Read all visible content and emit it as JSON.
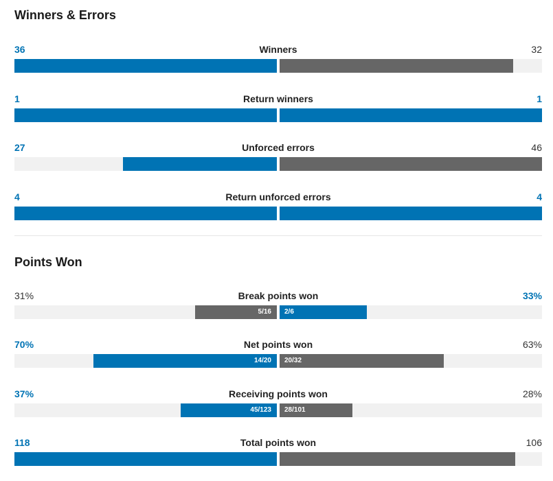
{
  "colors": {
    "blue": "#0073b4",
    "gray": "#666666",
    "track": "#f1f1f1",
    "plain_text": "#333333"
  },
  "winners_errors": {
    "title": "Winners & Errors",
    "stats": [
      {
        "label": "Winners",
        "left": "36",
        "right": "32",
        "left_fill": 1.0,
        "right_fill": 0.889,
        "left_color": "blue",
        "right_color": "gray",
        "left_bold": true,
        "right_bold": false
      },
      {
        "label": "Return winners",
        "left": "1",
        "right": "1",
        "left_fill": 1.0,
        "right_fill": 1.0,
        "left_color": "blue",
        "right_color": "blue",
        "left_bold": true,
        "right_bold": true
      },
      {
        "label": "Unforced errors",
        "left": "27",
        "right": "46",
        "left_fill": 0.587,
        "right_fill": 1.0,
        "left_color": "blue",
        "right_color": "gray",
        "left_bold": true,
        "right_bold": false
      },
      {
        "label": "Return unforced errors",
        "left": "4",
        "right": "4",
        "left_fill": 1.0,
        "right_fill": 1.0,
        "left_color": "blue",
        "right_color": "blue",
        "left_bold": true,
        "right_bold": true
      }
    ]
  },
  "points_won": {
    "title": "Points Won",
    "stats": [
      {
        "label": "Break points won",
        "left": "31%",
        "right": "33%",
        "left_fill": 0.3125,
        "right_fill": 0.333,
        "left_color": "gray",
        "right_color": "blue",
        "left_bold": false,
        "right_bold": true,
        "left_inner": "5/16",
        "right_inner": "2/6"
      },
      {
        "label": "Net points won",
        "left": "70%",
        "right": "63%",
        "left_fill": 0.7,
        "right_fill": 0.625,
        "left_color": "blue",
        "right_color": "gray",
        "left_bold": true,
        "right_bold": false,
        "left_inner": "14/20",
        "right_inner": "20/32"
      },
      {
        "label": "Receiving points won",
        "left": "37%",
        "right": "28%",
        "left_fill": 0.366,
        "right_fill": 0.277,
        "left_color": "blue",
        "right_color": "gray",
        "left_bold": true,
        "right_bold": false,
        "left_inner": "45/123",
        "right_inner": "28/101"
      },
      {
        "label": "Total points won",
        "left": "118",
        "right": "106",
        "left_fill": 1.0,
        "right_fill": 0.898,
        "left_color": "blue",
        "right_color": "gray",
        "left_bold": true,
        "right_bold": false
      }
    ]
  }
}
